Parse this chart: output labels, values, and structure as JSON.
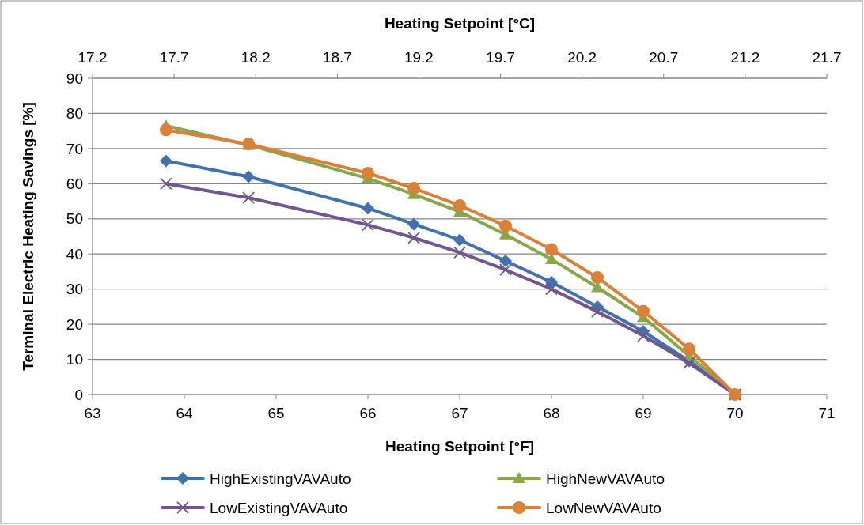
{
  "chart_data": {
    "type": "line",
    "xlabel": "Heating Setpoint [°F]",
    "x2label": "Heating Setpoint [°C]",
    "ylabel": "Terminal Electric Heating Savings [%]",
    "x": [
      63.8,
      64.7,
      66,
      66.5,
      67,
      67.5,
      68,
      68.5,
      69,
      69.5,
      70
    ],
    "xlim": [
      63,
      71
    ],
    "xticks": [
      63,
      64,
      65,
      66,
      67,
      68,
      69,
      70,
      71
    ],
    "x2lim": [
      17.2,
      21.7
    ],
    "x2ticks": [
      {
        "value": 17.2,
        "label": "17.2"
      },
      {
        "value": 17.7,
        "label": "17.7"
      },
      {
        "value": 18.2,
        "label": "18.2"
      },
      {
        "value": 18.7,
        "label": "18.7"
      },
      {
        "value": 19.2,
        "label": "19.2"
      },
      {
        "value": 19.7,
        "label": "19.7"
      },
      {
        "value": 20.2,
        "label": "20.2"
      },
      {
        "value": 20.7,
        "label": "20.7"
      },
      {
        "value": 21.2,
        "label": "21.2"
      },
      {
        "value": 21.7,
        "label": "21.7"
      }
    ],
    "ylim": [
      0,
      90
    ],
    "yticks": [
      0,
      10,
      20,
      30,
      40,
      50,
      60,
      70,
      80,
      90
    ],
    "grid": "y",
    "legend": "bottom",
    "series": [
      {
        "name": "HighExistingVAVAuto",
        "color": "#4272ae",
        "marker": "diamond",
        "values": [
          66.5,
          62,
          53,
          48.5,
          44,
          38,
          32,
          25,
          18,
          9.5,
          0
        ]
      },
      {
        "name": "HighNewVAVAuto",
        "color": "#87a84a",
        "marker": "triangle",
        "values": [
          76.5,
          71,
          61.5,
          57,
          52,
          45.5,
          38.5,
          30.5,
          22,
          11,
          0
        ]
      },
      {
        "name": "LowExistingVAVAuto",
        "color": "#71568f",
        "marker": "cross",
        "values": [
          60,
          56,
          48.3,
          44.6,
          40.4,
          35.5,
          30,
          23.6,
          16.7,
          9,
          0
        ]
      },
      {
        "name": "LowNewVAVAuto",
        "color": "#db8038",
        "marker": "circle",
        "values": [
          75.3,
          71.3,
          63,
          58.7,
          53.8,
          48,
          41.3,
          33.3,
          23.7,
          13,
          0
        ]
      }
    ]
  }
}
